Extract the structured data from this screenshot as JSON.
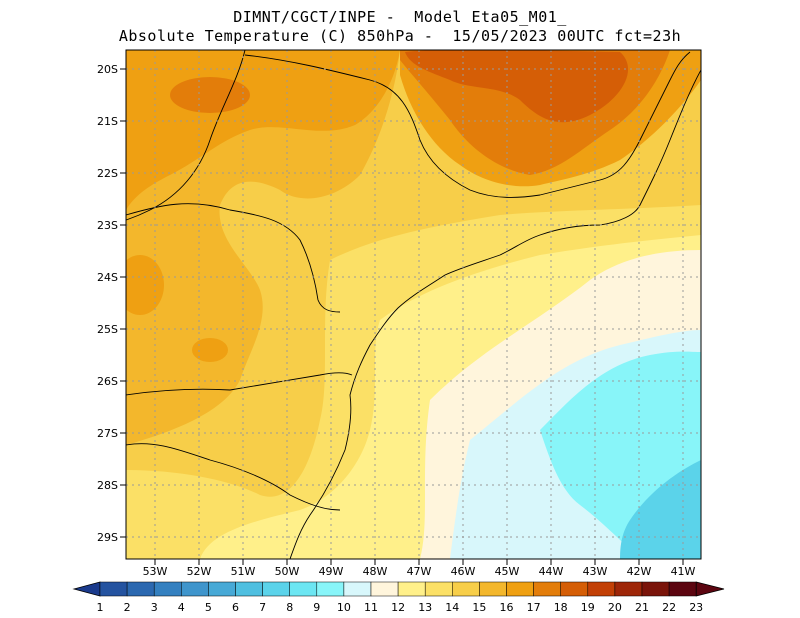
{
  "title": {
    "line1": "DIMNT/CGCT/INPE -  Model Eta05_M01_",
    "line2": "Absolute Temperature (C) 850hPa -  15/05/2023 00UTC fct=23h"
  },
  "axes": {
    "lat_labels": [
      "20S",
      "21S",
      "22S",
      "23S",
      "24S",
      "25S",
      "26S",
      "27S",
      "28S",
      "29S"
    ],
    "lon_labels": [
      "53W",
      "52W",
      "51W",
      "50W",
      "49W",
      "48W",
      "47W",
      "46W",
      "45W",
      "44W",
      "43W",
      "42W",
      "41W"
    ],
    "grid": true
  },
  "colorbar": {
    "labels": [
      "1",
      "2",
      "3",
      "4",
      "5",
      "6",
      "7",
      "8",
      "9",
      "10",
      "11",
      "12",
      "13",
      "14",
      "15",
      "16",
      "17",
      "18",
      "19",
      "20",
      "21",
      "22",
      "23"
    ],
    "colors": [
      "#1a3a8c",
      "#2453a0",
      "#2b68b0",
      "#3480c0",
      "#3f95cc",
      "#47a9d6",
      "#4fbfe0",
      "#5bd3ea",
      "#6ce6f2",
      "#88f5f9",
      "#d8f7fb",
      "#fff5dc",
      "#fff08a",
      "#fbe066",
      "#f7ce49",
      "#f3b72c",
      "#efa012",
      "#e37d0a",
      "#d55e06",
      "#c24006",
      "#9e2608",
      "#7a140a",
      "#5c0510"
    ]
  },
  "map": {
    "region": "Southeast / South Brazil",
    "lon_range": [
      -53.7,
      -40.6
    ],
    "lat_range": [
      -29.5,
      -19.8
    ]
  }
}
